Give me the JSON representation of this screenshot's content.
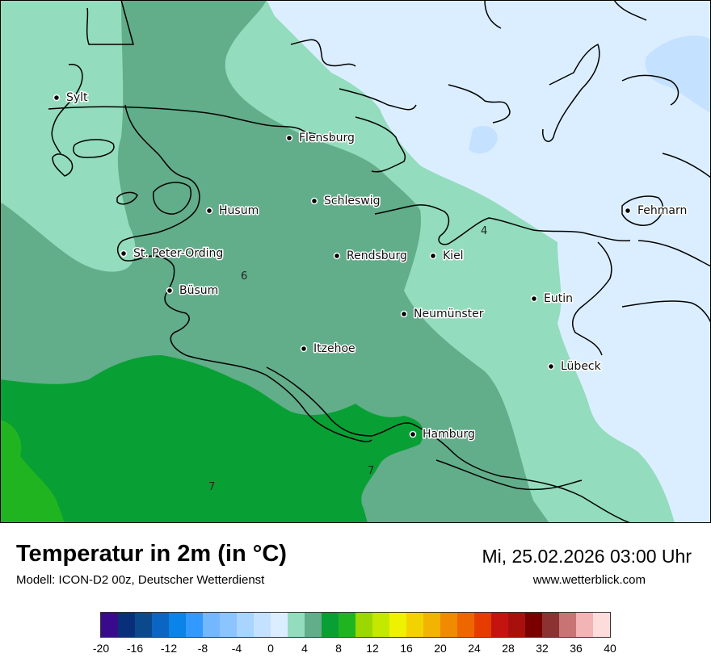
{
  "title": "Temperatur in 2m (in °C)",
  "subtitle": "Modell: ICON-D2 00z, Deutscher Wetterdienst",
  "datetime": "Mi, 25.02.2026 03:00 Uhr",
  "website": "www.wetterblick.com",
  "cities": [
    {
      "name": "Sylt"
    },
    {
      "name": "Flensburg"
    },
    {
      "name": "Schleswig"
    },
    {
      "name": "Husum"
    },
    {
      "name": "St. Peter-Ording"
    },
    {
      "name": "Rendsburg"
    },
    {
      "name": "Kiel"
    },
    {
      "name": "Fehmarn"
    },
    {
      "name": "Büsum"
    },
    {
      "name": "Eutin"
    },
    {
      "name": "Neumünster"
    },
    {
      "name": "Itzehoe"
    },
    {
      "name": "Lübeck"
    },
    {
      "name": "Hamburg"
    }
  ],
  "isoline_labels": [
    "4",
    "6",
    "7",
    "7"
  ],
  "legend": {
    "colors": [
      "#3a0a8c",
      "#0a2f7a",
      "#0a4a8c",
      "#0a66c2",
      "#0a84e8",
      "#3399ff",
      "#73b8ff",
      "#8cc4ff",
      "#a8d4ff",
      "#c4e2ff",
      "#dbeeff",
      "#93dcbd",
      "#62ad8a",
      "#08a034",
      "#20b420",
      "#9cd800",
      "#c4e800",
      "#eef200",
      "#f2d200",
      "#f2b400",
      "#f08a00",
      "#ee6600",
      "#e63c00",
      "#c41410",
      "#a8100e",
      "#7a0000",
      "#8c3232",
      "#c87474",
      "#f2b4b4",
      "#ffdcdc"
    ],
    "ticks": [
      "-20",
      "-16",
      "-12",
      "-8",
      "-4",
      "0",
      "4",
      "8",
      "12",
      "16",
      "20",
      "24",
      "28",
      "32",
      "36",
      "40"
    ],
    "min": -20,
    "max": 40
  }
}
